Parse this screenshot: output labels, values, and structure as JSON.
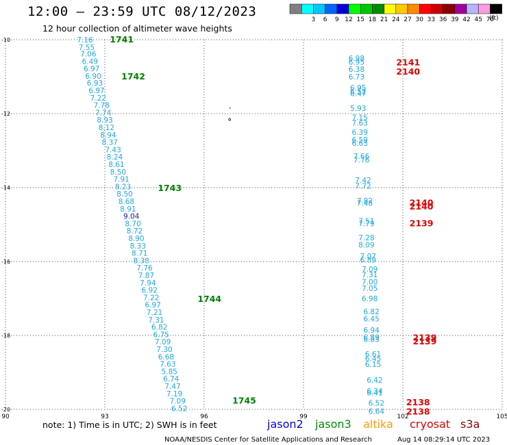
{
  "header": {
    "title": "12:00 — 23:59 UTC 08/12/2023",
    "subtitle": "12 hour collection of altimeter wave heights"
  },
  "color_scale": {
    "units": "(ft)",
    "bins": [
      {
        "label": "",
        "color": "#808080"
      },
      {
        "label": "3",
        "color": "#00ffff"
      },
      {
        "label": "6",
        "color": "#00c8ff"
      },
      {
        "label": "9",
        "color": "#0064ff"
      },
      {
        "label": "12",
        "color": "#0000dc"
      },
      {
        "label": "15",
        "color": "#00ff00"
      },
      {
        "label": "18",
        "color": "#00c800"
      },
      {
        "label": "21",
        "color": "#008c00"
      },
      {
        "label": "24",
        "color": "#ffff00"
      },
      {
        "label": "27",
        "color": "#ffc800"
      },
      {
        "label": "30",
        "color": "#ff8c00"
      },
      {
        "label": "33",
        "color": "#ff0000"
      },
      {
        "label": "36",
        "color": "#c80000"
      },
      {
        "label": "39",
        "color": "#8c0000"
      },
      {
        "label": "42",
        "color": "#a000a0"
      },
      {
        "label": "45",
        "color": "#b4b4ff"
      },
      {
        "label": "70",
        "color": "#ff9ce0"
      },
      {
        "label": "",
        "color": "#000000"
      }
    ]
  },
  "axes": {
    "lon_ticks": [
      "90",
      "93",
      "96",
      "99",
      "102",
      "105"
    ],
    "lat_ticks": [
      "-10",
      "-12",
      "-14",
      "-16",
      "-18",
      "-20"
    ]
  },
  "colors": {
    "swh_cyan": "#1ea6e0",
    "swh_navy": "#1a1aa0",
    "jason3_pass": "#008000",
    "cryosat_pass": "#e00000"
  },
  "tracks": [
    {
      "satellite": "jason3",
      "pass_labels": [
        {
          "text": "1741",
          "lon": 93.15,
          "lat": -9.98
        },
        {
          "text": "1742",
          "lon": 93.5,
          "lat": -10.98
        },
        {
          "text": "1743",
          "lon": 94.6,
          "lat": -14.0
        },
        {
          "text": "1744",
          "lon": 95.8,
          "lat": -17.0
        },
        {
          "text": "1745",
          "lon": 96.85,
          "lat": -19.75
        }
      ],
      "values": [
        {
          "v": "7.16",
          "lon": 92.4,
          "lat": -10.0
        },
        {
          "v": "7.55",
          "lon": 92.45,
          "lat": -10.2
        },
        {
          "v": "7.06",
          "lon": 92.5,
          "lat": -10.38
        },
        {
          "v": "6.49",
          "lon": 92.55,
          "lat": -10.58
        },
        {
          "v": "6.97",
          "lon": 92.6,
          "lat": -10.78
        },
        {
          "v": "6.90",
          "lon": 92.65,
          "lat": -10.98
        },
        {
          "v": "6.93",
          "lon": 92.7,
          "lat": -11.17
        },
        {
          "v": "6.97",
          "lon": 92.75,
          "lat": -11.37
        },
        {
          "v": "7.22",
          "lon": 92.8,
          "lat": -11.57
        },
        {
          "v": "7.78",
          "lon": 92.9,
          "lat": -11.77
        },
        {
          "v": "7.74",
          "lon": 92.95,
          "lat": -11.97
        },
        {
          "v": "8.93",
          "lon": 93.0,
          "lat": -12.17
        },
        {
          "v": "8.12",
          "lon": 93.05,
          "lat": -12.37
        },
        {
          "v": "8.94",
          "lon": 93.1,
          "lat": -12.57
        },
        {
          "v": "8.37",
          "lon": 93.15,
          "lat": -12.77
        },
        {
          "v": "7.43",
          "lon": 93.25,
          "lat": -12.97
        },
        {
          "v": "8.24",
          "lon": 93.3,
          "lat": -13.17
        },
        {
          "v": "8.61",
          "lon": 93.35,
          "lat": -13.37
        },
        {
          "v": "8.50",
          "lon": 93.4,
          "lat": -13.57
        },
        {
          "v": "7.91",
          "lon": 93.5,
          "lat": -13.77
        },
        {
          "v": "8.23",
          "lon": 93.55,
          "lat": -13.97
        },
        {
          "v": "8.50",
          "lon": 93.6,
          "lat": -14.17
        },
        {
          "v": "8.68",
          "lon": 93.65,
          "lat": -14.37
        },
        {
          "v": "8.91",
          "lon": 93.7,
          "lat": -14.57
        },
        {
          "v": "9.04",
          "lon": 93.8,
          "lat": -14.77,
          "color": "navy"
        },
        {
          "v": "8.70",
          "lon": 93.85,
          "lat": -14.97
        },
        {
          "v": "8.72",
          "lon": 93.9,
          "lat": -15.17
        },
        {
          "v": "8.90",
          "lon": 93.95,
          "lat": -15.37
        },
        {
          "v": "8.33",
          "lon": 94.0,
          "lat": -15.57
        },
        {
          "v": "8.71",
          "lon": 94.05,
          "lat": -15.77
        },
        {
          "v": "8.38",
          "lon": 94.1,
          "lat": -15.97
        },
        {
          "v": "7.76",
          "lon": 94.2,
          "lat": -16.17
        },
        {
          "v": "7.87",
          "lon": 94.25,
          "lat": -16.37
        },
        {
          "v": "7.94",
          "lon": 94.3,
          "lat": -16.57
        },
        {
          "v": "6.92",
          "lon": 94.35,
          "lat": -16.77
        },
        {
          "v": "7.22",
          "lon": 94.4,
          "lat": -16.97
        },
        {
          "v": "6.97",
          "lon": 94.45,
          "lat": -17.17
        },
        {
          "v": "7.21",
          "lon": 94.5,
          "lat": -17.37
        },
        {
          "v": "7.31",
          "lon": 94.55,
          "lat": -17.57
        },
        {
          "v": "6.82",
          "lon": 94.65,
          "lat": -17.77
        },
        {
          "v": "6.75",
          "lon": 94.7,
          "lat": -17.97
        },
        {
          "v": "7.09",
          "lon": 94.75,
          "lat": -18.17
        },
        {
          "v": "7.30",
          "lon": 94.8,
          "lat": -18.37
        },
        {
          "v": "6.68",
          "lon": 94.85,
          "lat": -18.57
        },
        {
          "v": "7.63",
          "lon": 94.9,
          "lat": -18.77
        },
        {
          "v": "5.85",
          "lon": 94.95,
          "lat": -18.97
        },
        {
          "v": "6.74",
          "lon": 95.0,
          "lat": -19.17
        },
        {
          "v": "7.47",
          "lon": 95.05,
          "lat": -19.37
        },
        {
          "v": "7.19",
          "lon": 95.1,
          "lat": -19.57
        },
        {
          "v": "7.09",
          "lon": 95.2,
          "lat": -19.77
        },
        {
          "v": "6.52",
          "lon": 95.25,
          "lat": -19.97
        }
      ]
    },
    {
      "satellite": "cryosat",
      "pass_labels": [
        {
          "text": "2141",
          "lon": 101.8,
          "lat": -10.6
        },
        {
          "text": "2140",
          "lon": 101.8,
          "lat": -10.85
        },
        {
          "text": "2140",
          "lon": 102.2,
          "lat": -14.4
        },
        {
          "text": "2140",
          "lon": 102.2,
          "lat": -14.5
        },
        {
          "text": "2139",
          "lon": 102.2,
          "lat": -14.95
        },
        {
          "text": "2139",
          "lon": 102.3,
          "lat": -18.05
        },
        {
          "text": "2139",
          "lon": 102.3,
          "lat": -18.15
        },
        {
          "text": "2138",
          "lon": 102.1,
          "lat": -19.8
        },
        {
          "text": "2138",
          "lon": 102.1,
          "lat": -20.05
        }
      ],
      "values": [
        {
          "v": "6.98",
          "lon": 100.6,
          "lat": -10.5
        },
        {
          "v": "6.95",
          "lon": 100.6,
          "lat": -10.6
        },
        {
          "v": "6.38",
          "lon": 100.6,
          "lat": -10.8
        },
        {
          "v": "6.73",
          "lon": 100.6,
          "lat": -11.0
        },
        {
          "v": "6.95",
          "lon": 100.65,
          "lat": -11.3
        },
        {
          "v": "6.52",
          "lon": 100.65,
          "lat": -11.4
        },
        {
          "v": "6.47",
          "lon": 100.65,
          "lat": -11.45
        },
        {
          "v": "5.93",
          "lon": 100.65,
          "lat": -11.85
        },
        {
          "v": "7.15",
          "lon": 100.7,
          "lat": -12.1
        },
        {
          "v": "7.63",
          "lon": 100.7,
          "lat": -12.25
        },
        {
          "v": "6.39",
          "lon": 100.7,
          "lat": -12.5
        },
        {
          "v": "6.59",
          "lon": 100.7,
          "lat": -12.7
        },
        {
          "v": "6.63",
          "lon": 100.7,
          "lat": -12.8
        },
        {
          "v": "7.66",
          "lon": 100.75,
          "lat": -13.15
        },
        {
          "v": "7.76",
          "lon": 100.75,
          "lat": -13.25
        },
        {
          "v": "7.42",
          "lon": 100.8,
          "lat": -13.8
        },
        {
          "v": "7.72",
          "lon": 100.8,
          "lat": -13.95
        },
        {
          "v": "7.82",
          "lon": 100.85,
          "lat": -14.35
        },
        {
          "v": "7.48",
          "lon": 100.85,
          "lat": -14.42
        },
        {
          "v": "7.51",
          "lon": 100.9,
          "lat": -14.9
        },
        {
          "v": "7.79",
          "lon": 100.9,
          "lat": -14.97
        },
        {
          "v": "7.28",
          "lon": 100.9,
          "lat": -15.35
        },
        {
          "v": "8.09",
          "lon": 100.9,
          "lat": -15.55
        },
        {
          "v": "7.07",
          "lon": 100.95,
          "lat": -15.85
        },
        {
          "v": "6.89",
          "lon": 100.95,
          "lat": -15.95
        },
        {
          "v": "7.09",
          "lon": 101.0,
          "lat": -16.2
        },
        {
          "v": "7.31",
          "lon": 101.0,
          "lat": -16.35
        },
        {
          "v": "7.00",
          "lon": 101.0,
          "lat": -16.55
        },
        {
          "v": "7.05",
          "lon": 101.0,
          "lat": -16.72
        },
        {
          "v": "6.98",
          "lon": 101.0,
          "lat": -17.0
        },
        {
          "v": "6.82",
          "lon": 101.05,
          "lat": -17.35
        },
        {
          "v": "6.45",
          "lon": 101.05,
          "lat": -17.55
        },
        {
          "v": "6.94",
          "lon": 101.05,
          "lat": -17.85
        },
        {
          "v": "6.89",
          "lon": 101.05,
          "lat": -18.05
        },
        {
          "v": "6.83",
          "lon": 101.05,
          "lat": -18.1
        },
        {
          "v": "6.61",
          "lon": 101.1,
          "lat": -18.5
        },
        {
          "v": "6.45",
          "lon": 101.1,
          "lat": -18.62
        },
        {
          "v": "6.15",
          "lon": 101.1,
          "lat": -18.78
        },
        {
          "v": "6.42",
          "lon": 101.15,
          "lat": -19.2
        },
        {
          "v": "6.34",
          "lon": 101.15,
          "lat": -19.5
        },
        {
          "v": "6.41",
          "lon": 101.15,
          "lat": -19.55
        },
        {
          "v": "6.52",
          "lon": 101.2,
          "lat": -19.82
        },
        {
          "v": "6.64",
          "lon": 101.2,
          "lat": -20.05
        }
      ]
    }
  ],
  "legend": {
    "note": "note: 1) Time is in UTC; 2) SWH is in feet",
    "satellites": [
      {
        "name": "jason2",
        "color": "#0000dc"
      },
      {
        "name": "jason3",
        "color": "#008c00"
      },
      {
        "name": "altika",
        "color": "#ff9900"
      },
      {
        "name": "cryosat",
        "color": "#e00000"
      },
      {
        "name": "s3a",
        "color": "#8c0000"
      }
    ]
  },
  "footer": {
    "credit": "NOAA/NESDIS Center for Satellite Applications and Research",
    "timestamp": "Aug 14 08:29:14 UTC 2023"
  }
}
